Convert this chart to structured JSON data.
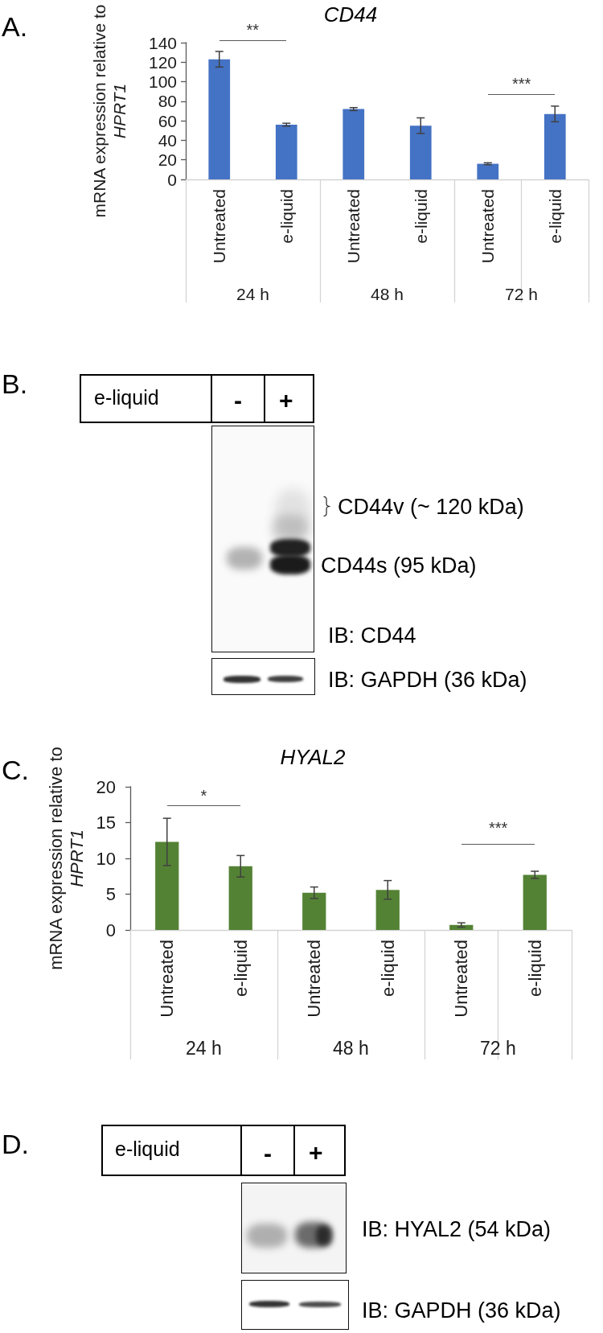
{
  "chart_data": [
    {
      "type": "bar",
      "title": "CD44",
      "ylabel": "mRNA expression relative to HPRT1",
      "categories": [
        "Untreated",
        "e-liquid",
        "Untreated",
        "e-liquid",
        "Untreated",
        "e-liquid"
      ],
      "values": [
        123,
        56,
        72,
        55,
        16,
        67
      ],
      "errors": [
        8,
        1.5,
        1.5,
        8,
        1,
        8
      ],
      "color": "#4472c4",
      "ylim": [
        0,
        140
      ],
      "yticks": [
        0,
        20,
        40,
        60,
        80,
        100,
        120,
        140
      ],
      "annotations": [
        "A.",
        "**",
        "***",
        "24 h",
        "48 h",
        "72 h"
      ]
    },
    {
      "type": "other",
      "annotations": [
        "B.",
        "e-liquid",
        "-",
        "+",
        "CD44v (~ 120 kDa)",
        "CD44s (95 kDa)",
        "IB: CD44",
        "IB: GAPDH (36 kDa)"
      ]
    },
    {
      "type": "bar",
      "title": "HYAL2",
      "ylabel": "mRNA expression relative to HPRT1",
      "categories": [
        "Untreated",
        "e-liquid",
        "Untreated",
        "e-liquid",
        "Untreated",
        "e-liquid"
      ],
      "values": [
        12.3,
        8.9,
        5.2,
        5.6,
        0.7,
        7.7
      ],
      "errors": [
        3.3,
        1.5,
        0.8,
        1.3,
        0.3,
        0.5
      ],
      "color": "#548235",
      "ylim": [
        0,
        20
      ],
      "yticks": [
        0,
        5,
        10,
        15,
        20
      ],
      "annotations": [
        "C.",
        "*",
        "***",
        "24 h",
        "48 h",
        "72 h"
      ]
    },
    {
      "type": "other",
      "annotations": [
        "D.",
        "e-liquid",
        "-",
        "+",
        "IB: HYAL2 (54 kDa)",
        "IB: GAPDH (36 kDa)"
      ]
    }
  ]
}
